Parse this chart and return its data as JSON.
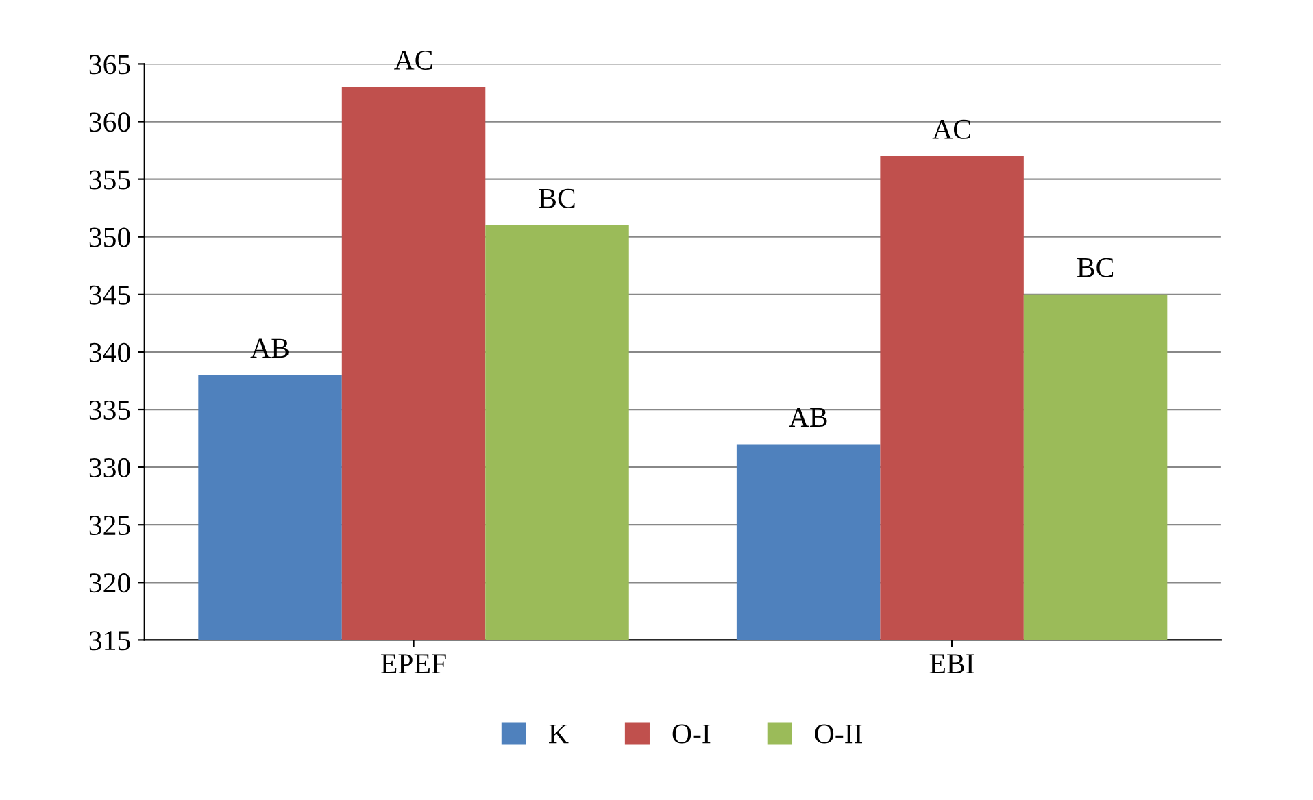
{
  "chart_data": {
    "type": "bar",
    "categories": [
      "EPEF",
      "EBI"
    ],
    "series": [
      {
        "name": "K",
        "color": "#4f81bd",
        "values": [
          338,
          332
        ],
        "value_labels": [
          "AB",
          "AB"
        ]
      },
      {
        "name": "O-I",
        "color": "#c0504d",
        "values": [
          363,
          357
        ],
        "value_labels": [
          "AC",
          "AC"
        ]
      },
      {
        "name": "O-II",
        "color": "#9bbb59",
        "values": [
          351,
          345
        ],
        "value_labels": [
          "BC",
          "BC"
        ]
      }
    ],
    "ylim": [
      315,
      365
    ],
    "yticks": [
      315,
      320,
      325,
      330,
      335,
      340,
      345,
      350,
      355,
      360,
      365
    ],
    "grid": "y",
    "legend": "bottom"
  }
}
